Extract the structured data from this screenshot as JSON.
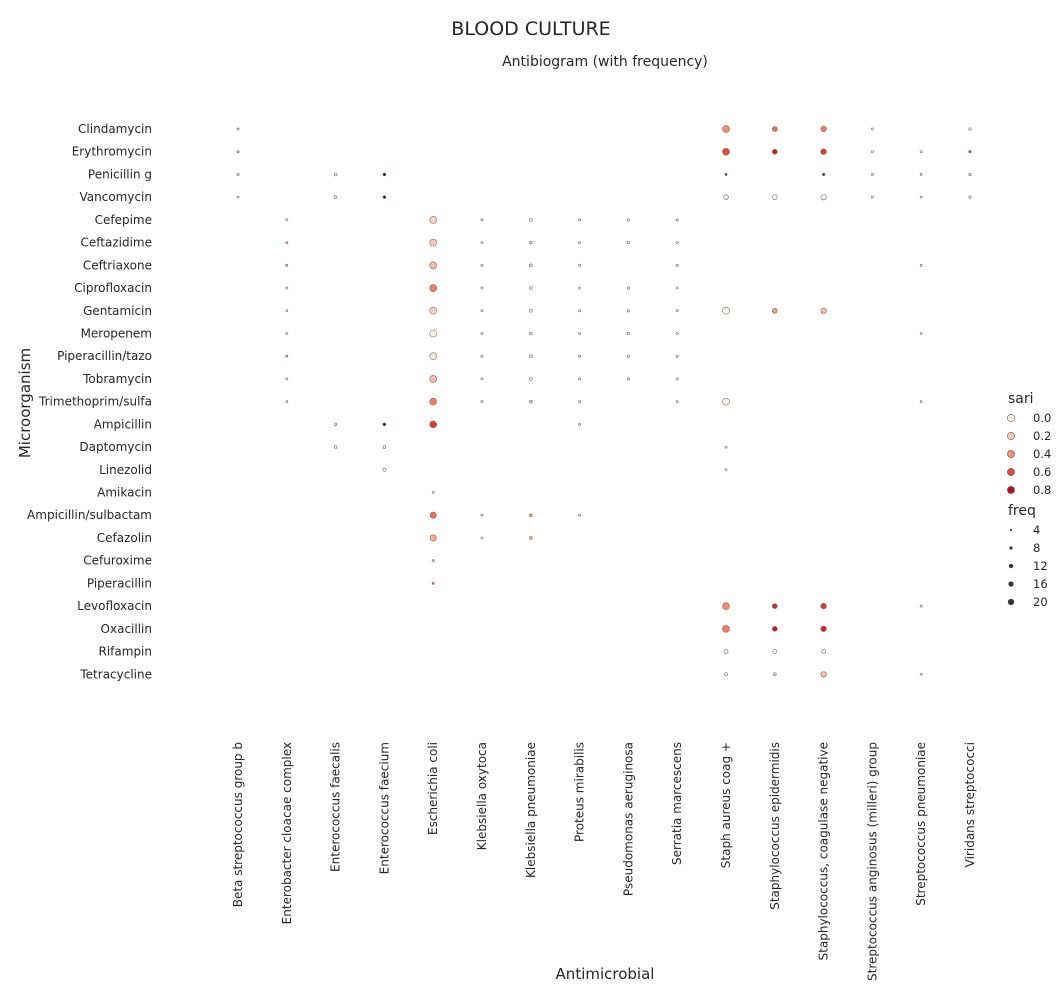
{
  "chart_data": {
    "type": "scatter",
    "title": "BLOOD CULTURE",
    "subtitle": "Antibiogram (with frequency)",
    "xlabel": "Antimicrobial",
    "ylabel": "Microorganism",
    "x_categories": [
      "Beta streptococcus group b",
      "Enterobacter cloacae complex",
      "Enterococcus faecalis",
      "Enterococcus faecium",
      "Escherichia coli",
      "Klebsiella oxytoca",
      "Klebsiella pneumoniae",
      "Proteus mirabilis",
      "Pseudomonas aeruginosa",
      "Serratia marcescens",
      "Staph aureus coag +",
      "Staphylococcus epidermidis",
      "Staphylococcus, coagulase negative",
      "Streptococcus anginosus (milleri) group",
      "Streptococcus pneumoniae",
      "Viridans streptococci"
    ],
    "y_categories": [
      "Clindamycin",
      "Erythromycin",
      "Penicillin g",
      "Vancomycin",
      "Cefepime",
      "Ceftazidime",
      "Ceftriaxone",
      "Ciprofloxacin",
      "Gentamicin",
      "Meropenem",
      "Piperacillin/tazo",
      "Tobramycin",
      "Trimethoprim/sulfa",
      "Ampicillin",
      "Daptomycin",
      "Linezolid",
      "Amikacin",
      "Ampicillin/sulbactam",
      "Cefazolin",
      "Cefuroxime",
      "Piperacillin",
      "Levofloxacin",
      "Oxacillin",
      "Rifampin",
      "Tetracycline"
    ],
    "grid": false,
    "legend_placement": "right",
    "color_scale": {
      "name": "Reds",
      "colors": [
        "#fff5f0",
        "#fcbba1",
        "#fb6a4a",
        "#cb181d",
        "#67000d"
      ]
    },
    "legend": {
      "color_title": "sari",
      "color_values": [
        0.0,
        0.2,
        0.4,
        0.6,
        0.8
      ],
      "color_labels": [
        "0.0",
        "0.2",
        "0.4",
        "0.6",
        "0.8"
      ],
      "size_title": "freq",
      "size_values": [
        4,
        8,
        12,
        16,
        20
      ],
      "size_labels": [
        "4",
        "8",
        "12",
        "16",
        "20"
      ]
    },
    "points": [
      {
        "x": "Beta streptococcus group b",
        "y": "Clindamycin",
        "sari": 0.2,
        "freq": 2
      },
      {
        "x": "Beta streptococcus group b",
        "y": "Erythromycin",
        "sari": 0.3,
        "freq": 2
      },
      {
        "x": "Beta streptococcus group b",
        "y": "Penicillin g",
        "sari": 0.0,
        "freq": 2
      },
      {
        "x": "Beta streptococcus group b",
        "y": "Vancomycin",
        "sari": 0.0,
        "freq": 2
      },
      {
        "x": "Enterobacter cloacae complex",
        "y": "Cefepime",
        "sari": 0.0,
        "freq": 2
      },
      {
        "x": "Enterobacter cloacae complex",
        "y": "Ceftazidime",
        "sari": 0.3,
        "freq": 2
      },
      {
        "x": "Enterobacter cloacae complex",
        "y": "Ceftriaxone",
        "sari": 0.3,
        "freq": 2
      },
      {
        "x": "Enterobacter cloacae complex",
        "y": "Ciprofloxacin",
        "sari": 0.0,
        "freq": 2
      },
      {
        "x": "Enterobacter cloacae complex",
        "y": "Gentamicin",
        "sari": 0.0,
        "freq": 2
      },
      {
        "x": "Enterobacter cloacae complex",
        "y": "Meropenem",
        "sari": 0.0,
        "freq": 2
      },
      {
        "x": "Enterobacter cloacae complex",
        "y": "Piperacillin/tazo",
        "sari": 0.3,
        "freq": 2
      },
      {
        "x": "Enterobacter cloacae complex",
        "y": "Tobramycin",
        "sari": 0.0,
        "freq": 2
      },
      {
        "x": "Enterobacter cloacae complex",
        "y": "Trimethoprim/sulfa",
        "sari": 0.0,
        "freq": 2
      },
      {
        "x": "Enterococcus faecalis",
        "y": "Penicillin g",
        "sari": 0.0,
        "freq": 4
      },
      {
        "x": "Enterococcus faecalis",
        "y": "Vancomycin",
        "sari": 0.0,
        "freq": 4
      },
      {
        "x": "Enterococcus faecalis",
        "y": "Ampicillin",
        "sari": 0.0,
        "freq": 4
      },
      {
        "x": "Enterococcus faecalis",
        "y": "Daptomycin",
        "sari": 0.0,
        "freq": 4
      },
      {
        "x": "Enterococcus faecium",
        "y": "Penicillin g",
        "sari": 1.0,
        "freq": 4
      },
      {
        "x": "Enterococcus faecium",
        "y": "Vancomycin",
        "sari": 1.0,
        "freq": 4
      },
      {
        "x": "Enterococcus faecium",
        "y": "Ampicillin",
        "sari": 1.0,
        "freq": 4
      },
      {
        "x": "Enterococcus faecium",
        "y": "Daptomycin",
        "sari": 0.0,
        "freq": 4
      },
      {
        "x": "Enterococcus faecium",
        "y": "Linezolid",
        "sari": 0.0,
        "freq": 5
      },
      {
        "x": "Escherichia coli",
        "y": "Cefepime",
        "sari": 0.15,
        "freq": 16
      },
      {
        "x": "Escherichia coli",
        "y": "Ceftazidime",
        "sari": 0.2,
        "freq": 16
      },
      {
        "x": "Escherichia coli",
        "y": "Ceftriaxone",
        "sari": 0.25,
        "freq": 16
      },
      {
        "x": "Escherichia coli",
        "y": "Ciprofloxacin",
        "sari": 0.45,
        "freq": 16
      },
      {
        "x": "Escherichia coli",
        "y": "Gentamicin",
        "sari": 0.15,
        "freq": 16
      },
      {
        "x": "Escherichia coli",
        "y": "Meropenem",
        "sari": 0.0,
        "freq": 16
      },
      {
        "x": "Escherichia coli",
        "y": "Piperacillin/tazo",
        "sari": 0.05,
        "freq": 16
      },
      {
        "x": "Escherichia coli",
        "y": "Tobramycin",
        "sari": 0.25,
        "freq": 16
      },
      {
        "x": "Escherichia coli",
        "y": "Trimethoprim/sulfa",
        "sari": 0.45,
        "freq": 16
      },
      {
        "x": "Escherichia coli",
        "y": "Ampicillin",
        "sari": 0.65,
        "freq": 16
      },
      {
        "x": "Escherichia coli",
        "y": "Amikacin",
        "sari": 0.0,
        "freq": 2
      },
      {
        "x": "Escherichia coli",
        "y": "Ampicillin/sulbactam",
        "sari": 0.5,
        "freq": 14
      },
      {
        "x": "Escherichia coli",
        "y": "Cefazolin",
        "sari": 0.3,
        "freq": 14
      },
      {
        "x": "Escherichia coli",
        "y": "Cefuroxime",
        "sari": 0.2,
        "freq": 2
      },
      {
        "x": "Escherichia coli",
        "y": "Piperacillin",
        "sari": 0.45,
        "freq": 2
      },
      {
        "x": "Klebsiella oxytoca",
        "y": "Cefepime",
        "sari": 0.0,
        "freq": 2
      },
      {
        "x": "Klebsiella oxytoca",
        "y": "Ceftazidime",
        "sari": 0.0,
        "freq": 2
      },
      {
        "x": "Klebsiella oxytoca",
        "y": "Ceftriaxone",
        "sari": 0.0,
        "freq": 2
      },
      {
        "x": "Klebsiella oxytoca",
        "y": "Ciprofloxacin",
        "sari": 0.0,
        "freq": 2
      },
      {
        "x": "Klebsiella oxytoca",
        "y": "Gentamicin",
        "sari": 0.0,
        "freq": 2
      },
      {
        "x": "Klebsiella oxytoca",
        "y": "Meropenem",
        "sari": 0.0,
        "freq": 2
      },
      {
        "x": "Klebsiella oxytoca",
        "y": "Piperacillin/tazo",
        "sari": 0.0,
        "freq": 2
      },
      {
        "x": "Klebsiella oxytoca",
        "y": "Tobramycin",
        "sari": 0.0,
        "freq": 2
      },
      {
        "x": "Klebsiella oxytoca",
        "y": "Trimethoprim/sulfa",
        "sari": 0.0,
        "freq": 2
      },
      {
        "x": "Klebsiella oxytoca",
        "y": "Ampicillin/sulbactam",
        "sari": 0.0,
        "freq": 2
      },
      {
        "x": "Klebsiella oxytoca",
        "y": "Cefazolin",
        "sari": 0.0,
        "freq": 2
      },
      {
        "x": "Klebsiella pneumoniae",
        "y": "Cefepime",
        "sari": 0.0,
        "freq": 4
      },
      {
        "x": "Klebsiella pneumoniae",
        "y": "Ceftazidime",
        "sari": 0.1,
        "freq": 4
      },
      {
        "x": "Klebsiella pneumoniae",
        "y": "Ceftriaxone",
        "sari": 0.1,
        "freq": 4
      },
      {
        "x": "Klebsiella pneumoniae",
        "y": "Ciprofloxacin",
        "sari": 0.0,
        "freq": 4
      },
      {
        "x": "Klebsiella pneumoniae",
        "y": "Gentamicin",
        "sari": 0.0,
        "freq": 4
      },
      {
        "x": "Klebsiella pneumoniae",
        "y": "Meropenem",
        "sari": 0.0,
        "freq": 4
      },
      {
        "x": "Klebsiella pneumoniae",
        "y": "Piperacillin/tazo",
        "sari": 0.0,
        "freq": 4
      },
      {
        "x": "Klebsiella pneumoniae",
        "y": "Tobramycin",
        "sari": 0.0,
        "freq": 4
      },
      {
        "x": "Klebsiella pneumoniae",
        "y": "Trimethoprim/sulfa",
        "sari": 0.1,
        "freq": 4
      },
      {
        "x": "Klebsiella pneumoniae",
        "y": "Ampicillin/sulbactam",
        "sari": 0.35,
        "freq": 4
      },
      {
        "x": "Klebsiella pneumoniae",
        "y": "Cefazolin",
        "sari": 0.25,
        "freq": 4
      },
      {
        "x": "Proteus mirabilis",
        "y": "Cefepime",
        "sari": 0.0,
        "freq": 2
      },
      {
        "x": "Proteus mirabilis",
        "y": "Ceftazidime",
        "sari": 0.0,
        "freq": 2
      },
      {
        "x": "Proteus mirabilis",
        "y": "Ceftriaxone",
        "sari": 0.0,
        "freq": 2
      },
      {
        "x": "Proteus mirabilis",
        "y": "Ciprofloxacin",
        "sari": 0.0,
        "freq": 2
      },
      {
        "x": "Proteus mirabilis",
        "y": "Gentamicin",
        "sari": 0.0,
        "freq": 2
      },
      {
        "x": "Proteus mirabilis",
        "y": "Meropenem",
        "sari": 0.0,
        "freq": 2
      },
      {
        "x": "Proteus mirabilis",
        "y": "Piperacillin/tazo",
        "sari": 0.0,
        "freq": 2
      },
      {
        "x": "Proteus mirabilis",
        "y": "Tobramycin",
        "sari": 0.0,
        "freq": 2
      },
      {
        "x": "Proteus mirabilis",
        "y": "Trimethoprim/sulfa",
        "sari": 0.0,
        "freq": 2
      },
      {
        "x": "Proteus mirabilis",
        "y": "Ampicillin",
        "sari": 0.0,
        "freq": 2
      },
      {
        "x": "Proteus mirabilis",
        "y": "Ampicillin/sulbactam",
        "sari": 0.0,
        "freq": 2
      },
      {
        "x": "Pseudomonas aeruginosa",
        "y": "Cefepime",
        "sari": 0.0,
        "freq": 3
      },
      {
        "x": "Pseudomonas aeruginosa",
        "y": "Ceftazidime",
        "sari": 0.0,
        "freq": 3
      },
      {
        "x": "Pseudomonas aeruginosa",
        "y": "Ciprofloxacin",
        "sari": 0.0,
        "freq": 3
      },
      {
        "x": "Pseudomonas aeruginosa",
        "y": "Gentamicin",
        "sari": 0.0,
        "freq": 3
      },
      {
        "x": "Pseudomonas aeruginosa",
        "y": "Meropenem",
        "sari": 0.0,
        "freq": 3
      },
      {
        "x": "Pseudomonas aeruginosa",
        "y": "Piperacillin/tazo",
        "sari": 0.0,
        "freq": 3
      },
      {
        "x": "Pseudomonas aeruginosa",
        "y": "Tobramycin",
        "sari": 0.0,
        "freq": 3
      },
      {
        "x": "Serratia marcescens",
        "y": "Cefepime",
        "sari": 0.0,
        "freq": 2
      },
      {
        "x": "Serratia marcescens",
        "y": "Ceftazidime",
        "sari": 0.0,
        "freq": 2
      },
      {
        "x": "Serratia marcescens",
        "y": "Ceftriaxone",
        "sari": 0.0,
        "freq": 2
      },
      {
        "x": "Serratia marcescens",
        "y": "Ciprofloxacin",
        "sari": 0.0,
        "freq": 2
      },
      {
        "x": "Serratia marcescens",
        "y": "Gentamicin",
        "sari": 0.0,
        "freq": 2
      },
      {
        "x": "Serratia marcescens",
        "y": "Meropenem",
        "sari": 0.0,
        "freq": 2
      },
      {
        "x": "Serratia marcescens",
        "y": "Piperacillin/tazo",
        "sari": 0.0,
        "freq": 2
      },
      {
        "x": "Serratia marcescens",
        "y": "Tobramycin",
        "sari": 0.0,
        "freq": 2
      },
      {
        "x": "Serratia marcescens",
        "y": "Trimethoprim/sulfa",
        "sari": 0.0,
        "freq": 2
      },
      {
        "x": "Staph aureus coag +",
        "y": "Clindamycin",
        "sari": 0.4,
        "freq": 16
      },
      {
        "x": "Staph aureus coag +",
        "y": "Erythromycin",
        "sari": 0.6,
        "freq": 16
      },
      {
        "x": "Staph aureus coag +",
        "y": "Penicillin g",
        "sari": 0.9,
        "freq": 2
      },
      {
        "x": "Staph aureus coag +",
        "y": "Vancomycin",
        "sari": 0.0,
        "freq": 10
      },
      {
        "x": "Staph aureus coag +",
        "y": "Gentamicin",
        "sari": 0.0,
        "freq": 16
      },
      {
        "x": "Staph aureus coag +",
        "y": "Trimethoprim/sulfa",
        "sari": 0.0,
        "freq": 16
      },
      {
        "x": "Staph aureus coag +",
        "y": "Daptomycin",
        "sari": 0.0,
        "freq": 2
      },
      {
        "x": "Staph aureus coag +",
        "y": "Linezolid",
        "sari": 0.0,
        "freq": 2
      },
      {
        "x": "Staph aureus coag +",
        "y": "Levofloxacin",
        "sari": 0.4,
        "freq": 16
      },
      {
        "x": "Staph aureus coag +",
        "y": "Oxacillin",
        "sari": 0.45,
        "freq": 16
      },
      {
        "x": "Staph aureus coag +",
        "y": "Rifampin",
        "sari": 0.0,
        "freq": 8
      },
      {
        "x": "Staph aureus coag +",
        "y": "Tetracycline",
        "sari": 0.0,
        "freq": 5
      },
      {
        "x": "Staphylococcus epidermidis",
        "y": "Clindamycin",
        "sari": 0.5,
        "freq": 10
      },
      {
        "x": "Staphylococcus epidermidis",
        "y": "Erythromycin",
        "sari": 0.75,
        "freq": 10
      },
      {
        "x": "Staphylococcus epidermidis",
        "y": "Vancomycin",
        "sari": 0.0,
        "freq": 10
      },
      {
        "x": "Staphylococcus epidermidis",
        "y": "Gentamicin",
        "sari": 0.35,
        "freq": 10
      },
      {
        "x": "Staphylococcus epidermidis",
        "y": "Levofloxacin",
        "sari": 0.7,
        "freq": 10
      },
      {
        "x": "Staphylococcus epidermidis",
        "y": "Oxacillin",
        "sari": 0.75,
        "freq": 10
      },
      {
        "x": "Staphylococcus epidermidis",
        "y": "Rifampin",
        "sari": 0.0,
        "freq": 8
      },
      {
        "x": "Staphylococcus epidermidis",
        "y": "Tetracycline",
        "sari": 0.1,
        "freq": 4
      },
      {
        "x": "Staphylococcus, coagulase negative",
        "y": "Clindamycin",
        "sari": 0.45,
        "freq": 12
      },
      {
        "x": "Staphylococcus, coagulase negative",
        "y": "Erythromycin",
        "sari": 0.65,
        "freq": 12
      },
      {
        "x": "Staphylococcus, coagulase negative",
        "y": "Penicillin g",
        "sari": 0.85,
        "freq": 3
      },
      {
        "x": "Staphylococcus, coagulase negative",
        "y": "Vancomycin",
        "sari": 0.0,
        "freq": 12
      },
      {
        "x": "Staphylococcus, coagulase negative",
        "y": "Gentamicin",
        "sari": 0.25,
        "freq": 12
      },
      {
        "x": "Staphylococcus, coagulase negative",
        "y": "Levofloxacin",
        "sari": 0.65,
        "freq": 12
      },
      {
        "x": "Staphylococcus, coagulase negative",
        "y": "Oxacillin",
        "sari": 0.7,
        "freq": 12
      },
      {
        "x": "Staphylococcus, coagulase negative",
        "y": "Rifampin",
        "sari": 0.0,
        "freq": 8
      },
      {
        "x": "Staphylococcus, coagulase negative",
        "y": "Tetracycline",
        "sari": 0.25,
        "freq": 12
      },
      {
        "x": "Streptococcus anginosus (milleri) group",
        "y": "Clindamycin",
        "sari": 0.0,
        "freq": 2
      },
      {
        "x": "Streptococcus anginosus (milleri) group",
        "y": "Erythromycin",
        "sari": 0.0,
        "freq": 2
      },
      {
        "x": "Streptococcus anginosus (milleri) group",
        "y": "Penicillin g",
        "sari": 0.0,
        "freq": 2
      },
      {
        "x": "Streptococcus anginosus (milleri) group",
        "y": "Vancomycin",
        "sari": 0.0,
        "freq": 2
      },
      {
        "x": "Streptococcus pneumoniae",
        "y": "Erythromycin",
        "sari": 0.0,
        "freq": 2
      },
      {
        "x": "Streptococcus pneumoniae",
        "y": "Penicillin g",
        "sari": 0.0,
        "freq": 2
      },
      {
        "x": "Streptococcus pneumoniae",
        "y": "Vancomycin",
        "sari": 0.0,
        "freq": 2
      },
      {
        "x": "Streptococcus pneumoniae",
        "y": "Ceftriaxone",
        "sari": 0.0,
        "freq": 2
      },
      {
        "x": "Streptococcus pneumoniae",
        "y": "Meropenem",
        "sari": 0.0,
        "freq": 2
      },
      {
        "x": "Streptococcus pneumoniae",
        "y": "Trimethoprim/sulfa",
        "sari": 0.0,
        "freq": 2
      },
      {
        "x": "Streptococcus pneumoniae",
        "y": "Levofloxacin",
        "sari": 0.0,
        "freq": 2
      },
      {
        "x": "Streptococcus pneumoniae",
        "y": "Tetracycline",
        "sari": 0.0,
        "freq": 2
      },
      {
        "x": "Viridans streptococci",
        "y": "Clindamycin",
        "sari": 0.1,
        "freq": 3
      },
      {
        "x": "Viridans streptococci",
        "y": "Erythromycin",
        "sari": 0.6,
        "freq": 3
      },
      {
        "x": "Viridans streptococci",
        "y": "Penicillin g",
        "sari": 0.1,
        "freq": 3
      },
      {
        "x": "Viridans streptococci",
        "y": "Vancomycin",
        "sari": 0.0,
        "freq": 3
      }
    ]
  }
}
